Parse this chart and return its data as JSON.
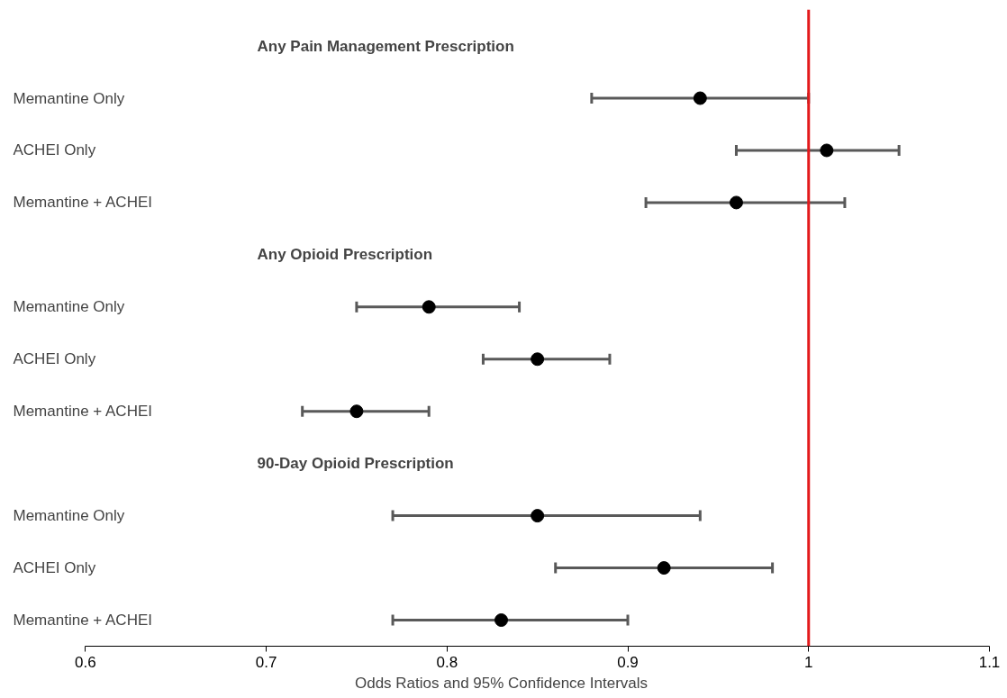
{
  "chart_data": {
    "type": "scatter",
    "orientation": "horizontal",
    "xlabel": "Odds Ratios and 95% Confidence Intervals",
    "categories": [
      null,
      "Memantine Only",
      "ACHEI Only",
      "Memantine + ACHEI",
      null,
      "Memantine Only",
      "ACHEI Only",
      "Memantine + ACHEI",
      null,
      "Memantine Only",
      "ACHEI Only",
      "Memantine + ACHEI"
    ],
    "values": [
      null,
      0.94,
      1.01,
      0.96,
      null,
      0.79,
      0.85,
      0.75,
      null,
      0.85,
      0.92,
      0.83
    ],
    "errors": [
      null,
      [
        0.88,
        1.0
      ],
      [
        0.96,
        1.05
      ],
      [
        0.91,
        1.02
      ],
      null,
      [
        0.75,
        0.84
      ],
      [
        0.82,
        0.89
      ],
      [
        0.72,
        0.79
      ],
      null,
      [
        0.77,
        0.94
      ],
      [
        0.86,
        0.98
      ],
      [
        0.77,
        0.9
      ]
    ],
    "color": "#000000",
    "marker": "circle",
    "grid": false,
    "xlim": [
      0.6,
      1.1
    ],
    "xticks": [
      0.6,
      0.7,
      0.8,
      0.9,
      1,
      1.1
    ],
    "ref_lines": [
      {
        "axis": "x",
        "value": 1,
        "color": "#e31a1c"
      }
    ],
    "annotations": [
      "Any Pain Management Prescription",
      "Any Opioid Prescription",
      "90-Day Opioid Prescription"
    ]
  }
}
